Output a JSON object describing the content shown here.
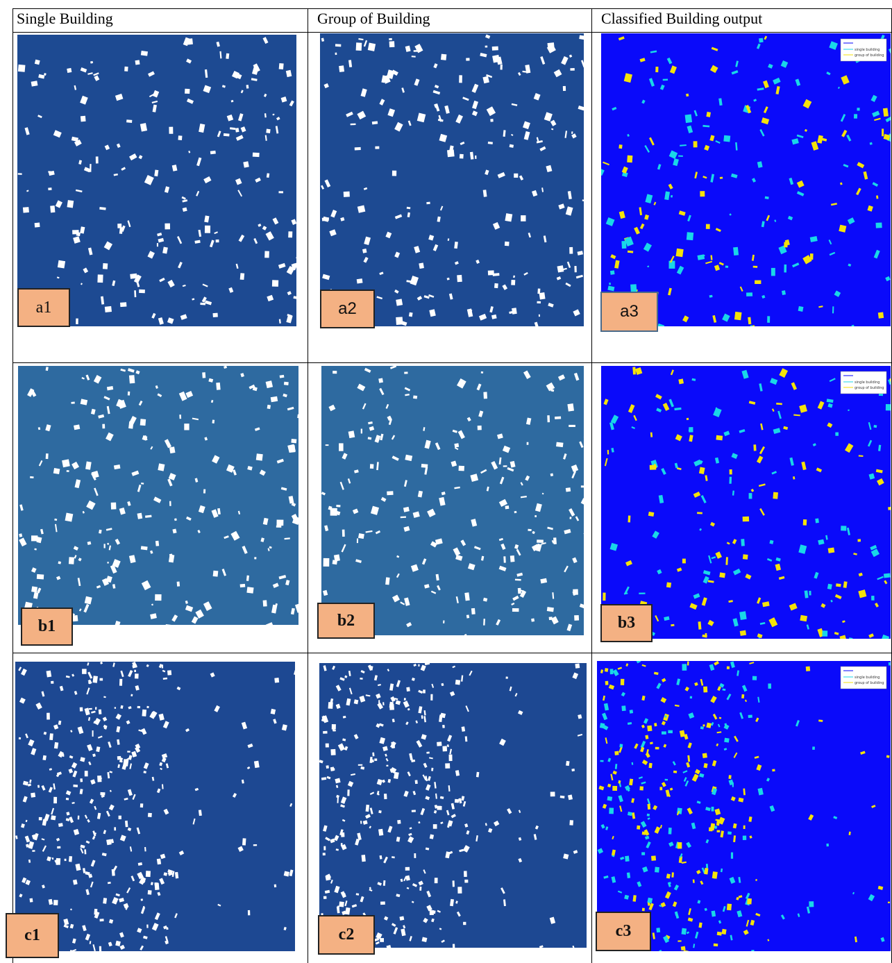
{
  "table": {
    "header": [
      "Single Building",
      "Group of Building",
      "Classified Building output"
    ],
    "rows": [
      [
        "a1",
        "a2",
        "a3"
      ],
      [
        "b1",
        "b2",
        "b3"
      ],
      [
        "c1",
        "c2",
        "c3"
      ]
    ]
  },
  "legend": {
    "items": [
      "single building",
      "group of building"
    ]
  }
}
